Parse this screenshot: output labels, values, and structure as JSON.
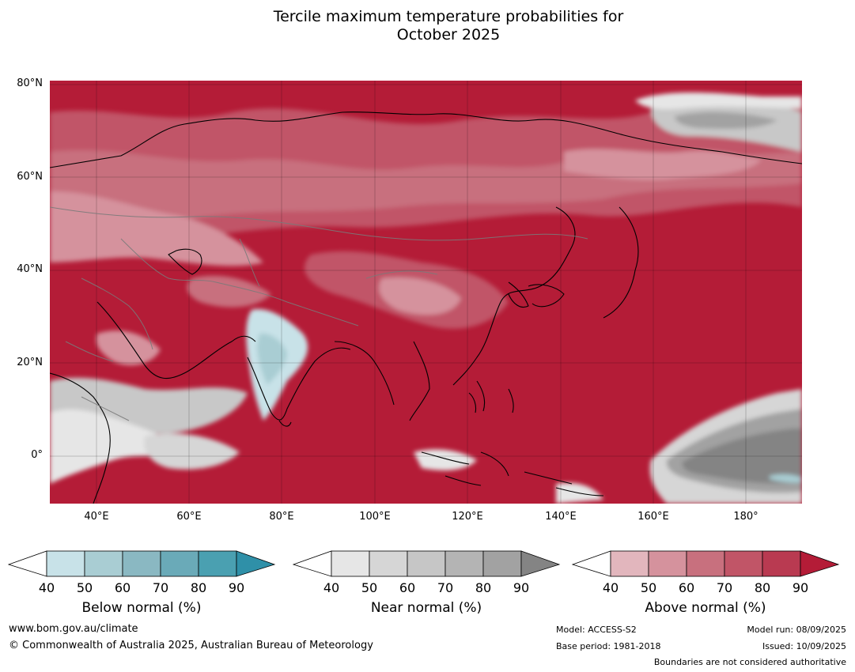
{
  "title": {
    "line1": "Tercile maximum temperature probabilities for",
    "line2": "October 2025"
  },
  "axes": {
    "lat_labels": [
      "80°N",
      "60°N",
      "40°N",
      "20°N",
      "0°"
    ],
    "lon_labels": [
      "40°E",
      "60°E",
      "80°E",
      "100°E",
      "120°E",
      "140°E",
      "160°E",
      "180°"
    ]
  },
  "colorbars": [
    {
      "name": "Below normal (%)",
      "ticks": [
        "40",
        "50",
        "60",
        "70",
        "80",
        "90"
      ],
      "colors": [
        "#ffffff",
        "#c8e2e8",
        "#a9cdd3",
        "#8ab8c2",
        "#6aaab8",
        "#4aa0b1",
        "#2f90a8"
      ]
    },
    {
      "name": "Near normal (%)",
      "ticks": [
        "40",
        "50",
        "60",
        "70",
        "80",
        "90"
      ],
      "colors": [
        "#ffffff",
        "#e6e6e6",
        "#d6d6d6",
        "#c6c6c6",
        "#b4b4b4",
        "#a2a2a2",
        "#848484"
      ]
    },
    {
      "name": "Above normal (%)",
      "ticks": [
        "40",
        "50",
        "60",
        "70",
        "80",
        "90"
      ],
      "colors": [
        "#ffffff",
        "#e2b6bd",
        "#d5929d",
        "#c8707e",
        "#c15567",
        "#b93a51",
        "#b41c37"
      ]
    }
  ],
  "footer": {
    "website": "www.bom.gov.au/climate",
    "copyright": "© Commonwealth of Australia 2025, Australian Bureau of Meteorology",
    "model": "Model: ACCESS-S2",
    "base_period": "Base period: 1981-2018",
    "model_run": "Model run: 08/09/2025",
    "issued": "Issued: 10/09/2025",
    "disclaimer": "Boundaries are not considered authoritative"
  }
}
